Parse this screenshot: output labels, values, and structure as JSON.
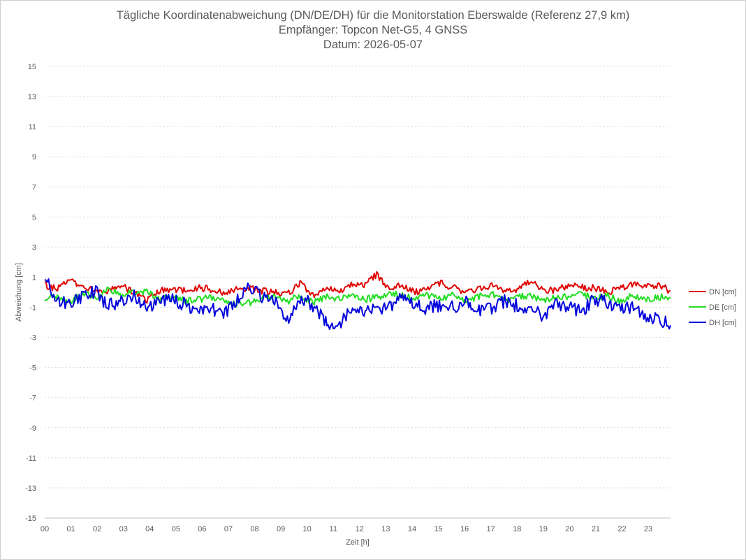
{
  "chart_data": {
    "type": "line",
    "title": "Tägliche Koordinatenabweichung (DN/DE/DH) für die Monitorstation Eberswalde (Referenz 27,9 km)",
    "subtitle_1": "Empfänger: Topcon Net-G5, 4 GNSS",
    "subtitle_2": "Datum: 2026-05-07",
    "xlabel": "Zeit [h]",
    "ylabel": "Abweichung [cm]",
    "xlim": [
      0,
      23.85
    ],
    "ylim": [
      -15,
      15
    ],
    "x_tick_labels": [
      "00",
      "01",
      "02",
      "03",
      "04",
      "05",
      "06",
      "07",
      "08",
      "09",
      "10",
      "11",
      "12",
      "13",
      "14",
      "15",
      "16",
      "17",
      "18",
      "19",
      "20",
      "21",
      "22",
      "23"
    ],
    "y_ticks": [
      15,
      13,
      11,
      9,
      7,
      5,
      3,
      1,
      -1,
      -3,
      -5,
      -7,
      -9,
      -11,
      -13,
      -15
    ],
    "grid": "horizontal dashed",
    "legend_position": "right",
    "x_step_hours": 1,
    "series": [
      {
        "name": "DN [cm]",
        "color": "#e00000",
        "values": [
          0.5,
          0.2,
          0.8,
          0.3,
          0.2,
          0.1,
          0.4,
          0.0,
          -0.5,
          0.1,
          0.2,
          0.1,
          0.3,
          0.2,
          0.0,
          0.2,
          0.3,
          0.1,
          0.0,
          -0.1,
          0.6,
          -0.2,
          0.3,
          0.0,
          0.6,
          0.4,
          1.2,
          0.2,
          0.5,
          0.0,
          0.3,
          0.6,
          0.3,
          0.0,
          0.2,
          0.5,
          0.0,
          0.1,
          0.8,
          0.2,
          0.1,
          0.5,
          0.3,
          0.3,
          0.0,
          0.2,
          0.5,
          0.4,
          0.5,
          0.1
        ]
      },
      {
        "name": "DE [cm]",
        "color": "#22dd22",
        "values": [
          -0.4,
          -0.3,
          -0.6,
          0.0,
          -0.3,
          0.2,
          -0.2,
          0.0,
          0.0,
          -0.5,
          -0.3,
          -0.6,
          -0.5,
          -0.3,
          -0.5,
          -0.8,
          -0.7,
          -0.4,
          -0.3,
          -0.6,
          -0.2,
          -0.7,
          -0.3,
          -0.4,
          -0.2,
          -0.5,
          -0.3,
          -0.1,
          -0.2,
          -0.5,
          -0.2,
          -0.4,
          -0.2,
          -0.5,
          -0.3,
          -0.1,
          -0.6,
          -0.3,
          -0.2,
          -0.6,
          -0.3,
          -0.3,
          -0.1,
          -0.4,
          -0.2,
          -0.6,
          -0.2,
          -0.5,
          -0.3,
          -0.4
        ]
      },
      {
        "name": "DH [cm]",
        "color": "#0000dd",
        "values": [
          1.0,
          -0.5,
          -0.8,
          -0.2,
          0.0,
          -0.9,
          -0.6,
          -0.3,
          -1.0,
          -0.5,
          -0.5,
          -0.8,
          -1.3,
          -1.0,
          -1.5,
          -0.5,
          0.3,
          -0.3,
          -0.5,
          -1.8,
          -0.3,
          -0.9,
          -2.0,
          -2.2,
          -1.0,
          -1.2,
          -1.1,
          -0.9,
          -0.4,
          -0.9,
          -1.1,
          -0.8,
          -1.0,
          -0.7,
          -1.2,
          -1.0,
          -0.6,
          -0.9,
          -1.1,
          -1.6,
          -0.8,
          -1.0,
          -1.3,
          -0.4,
          -0.7,
          -1.2,
          -1.0,
          -1.5,
          -1.8,
          -2.2
        ]
      }
    ]
  }
}
